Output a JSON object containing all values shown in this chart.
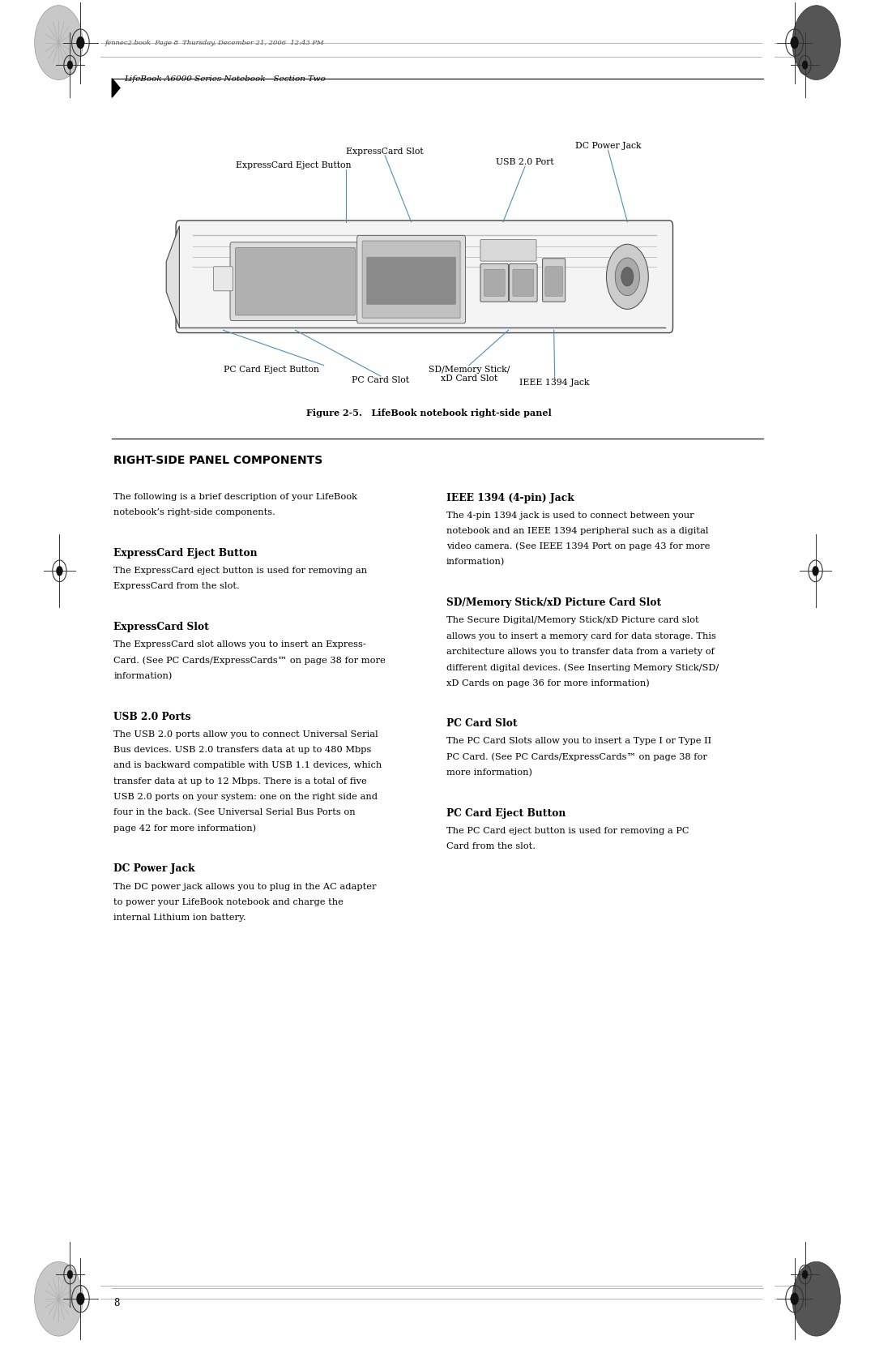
{
  "bg_color": "#ffffff",
  "page_width": 10.8,
  "page_height": 16.69,
  "header_text": "LifeBook A6000 Series Notebook - Section Two",
  "figure_caption": "Figure 2-5.   LifeBook notebook right-side panel",
  "section_title": "RIGHT-SIDE PANEL COMPONENTS",
  "section_intro_line1": "The following is a brief description of your LifeBook",
  "section_intro_line2": "notebook’s right-side components.",
  "left_column_items": [
    {
      "heading": "ExpressCard Eject Button",
      "body_lines": [
        "The ExpressCard eject button is used for removing an",
        "ExpressCard from the slot."
      ]
    },
    {
      "heading": "ExpressCard Slot",
      "body_lines": [
        "The ExpressCard slot allows you to insert an Express-",
        "Card. (See PC Cards/ExpressCards™ on page 38 for more",
        "information)"
      ]
    },
    {
      "heading": "USB 2.0 Ports",
      "body_lines": [
        "The USB 2.0 ports allow you to connect Universal Serial",
        "Bus devices. USB 2.0 transfers data at up to 480 Mbps",
        "and is backward compatible with USB 1.1 devices, which",
        "transfer data at up to 12 Mbps. There is a total of five",
        "USB 2.0 ports on your system: one on the right side and",
        "four in the back. (See Universal Serial Bus Ports on",
        "page 42 for more information)"
      ]
    },
    {
      "heading": "DC Power Jack",
      "body_lines": [
        "The DC power jack allows you to plug in the AC adapter",
        "to power your LifeBook notebook and charge the",
        "internal Lithium ion battery."
      ]
    }
  ],
  "right_column_items": [
    {
      "heading": "IEEE 1394 (4-pin) Jack",
      "body_lines": [
        "The 4-pin 1394 jack is used to connect between your",
        "notebook and an IEEE 1394 peripheral such as a digital",
        "video camera. (See IEEE 1394 Port on page 43 for more",
        "information)"
      ]
    },
    {
      "heading": "SD/Memory Stick/xD Picture Card Slot",
      "body_lines": [
        "The Secure Digital/Memory Stick/xD Picture card slot",
        "allows you to insert a memory card for data storage. This",
        "architecture allows you to transfer data from a variety of",
        "different digital devices. (See Inserting Memory Stick/SD/",
        "xD Cards on page 36 for more information)"
      ]
    },
    {
      "heading": "PC Card Slot",
      "body_lines": [
        "The PC Card Slots allow you to insert a Type I or Type II",
        "PC Card. (See PC Cards/ExpressCards™ on page 38 for",
        "more information)"
      ]
    },
    {
      "heading": "PC Card Eject Button",
      "body_lines": [
        "The PC Card eject button is used for removing a PC",
        "Card from the slot."
      ]
    }
  ],
  "line_color": "#4a8fc0",
  "font_size_body": 8.2,
  "font_size_heading": 8.8,
  "font_size_section": 10.0,
  "font_size_caption": 8.0,
  "font_size_header": 7.5,
  "font_size_label": 7.8
}
